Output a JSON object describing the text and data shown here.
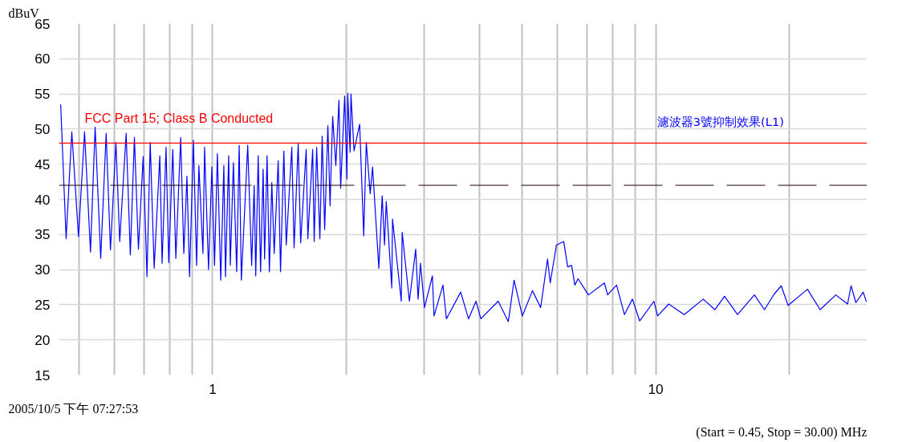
{
  "chart_data": {
    "type": "line",
    "ylabel": "dBuV",
    "log": "x",
    "grid": true,
    "marker": "none",
    "line_style": "solid",
    "xlim": [
      0.45,
      30
    ],
    "ylim": [
      15,
      65
    ],
    "xticks": [
      {
        "value": 0.5,
        "label": null
      },
      {
        "value": 0.6,
        "label": null
      },
      {
        "value": 0.7,
        "label": null
      },
      {
        "value": 0.8,
        "label": null
      },
      {
        "value": 0.9,
        "label": null
      },
      1,
      {
        "value": 2,
        "label": null
      },
      {
        "value": 3,
        "label": null
      },
      {
        "value": 4,
        "label": null
      },
      {
        "value": 5,
        "label": null
      },
      {
        "value": 6,
        "label": null
      },
      {
        "value": 7,
        "label": null
      },
      {
        "value": 8,
        "label": null
      },
      {
        "value": 9,
        "label": null
      },
      10,
      {
        "value": 20,
        "label": null
      }
    ],
    "yticks": [
      15,
      20,
      25,
      30,
      35,
      40,
      45,
      50,
      55,
      60,
      65
    ],
    "ref_lines": [
      {
        "axis": "y",
        "value": 48,
        "label": "FCC Part 15; Class B Conducted",
        "color": "#ff0000",
        "line_style": "solid"
      },
      {
        "axis": "y",
        "value": 42,
        "color": "#200000",
        "line_style": "dashed"
      }
    ],
    "annotations": [
      "2005/10/5 下午 07:27:53",
      "(Start = 0.45, Stop = 30.00) MHz"
    ],
    "series": [
      {
        "name": "濾波器3號抑制效果(L1)",
        "color": "#0000ff",
        "x": [
          0.454,
          0.467,
          0.481,
          0.498,
          0.514,
          0.53,
          0.543,
          0.559,
          0.575,
          0.588,
          0.605,
          0.617,
          0.638,
          0.652,
          0.666,
          0.68,
          0.697,
          0.711,
          0.723,
          0.738,
          0.76,
          0.769,
          0.785,
          0.796,
          0.813,
          0.826,
          0.847,
          0.861,
          0.875,
          0.887,
          0.905,
          0.92,
          0.931,
          0.951,
          0.959,
          0.979,
          0.996,
          1.01,
          1.025,
          1.043,
          1.06,
          1.069,
          1.087,
          1.096,
          1.114,
          1.133,
          1.148,
          1.161,
          1.2,
          1.225,
          1.241,
          1.251,
          1.267,
          1.283,
          1.3,
          1.31,
          1.327,
          1.343,
          1.36,
          1.377,
          1.406,
          1.423,
          1.448,
          1.466,
          1.509,
          1.527,
          1.56,
          1.58,
          1.626,
          1.64,
          1.682,
          1.695,
          1.717,
          1.746,
          1.767,
          1.79,
          1.82,
          1.841,
          1.866,
          1.897,
          1.928,
          1.945,
          1.986,
          2.01,
          2.018,
          2.043,
          2.052,
          2.085,
          2.147,
          2.193,
          2.222,
          2.268,
          2.296,
          2.372,
          2.414,
          2.443,
          2.465,
          2.537,
          2.547,
          2.665,
          2.678,
          2.78,
          2.873,
          2.909,
          2.945,
          3.007,
          3.133,
          3.16,
          3.31,
          3.37,
          3.63,
          3.78,
          3.93,
          4.03,
          4.41,
          4.65,
          4.79,
          5.0,
          5.27,
          5.5,
          5.7,
          5.78,
          5.97,
          6.2,
          6.33,
          6.46,
          6.57,
          6.68,
          7.05,
          7.66,
          7.79,
          8.16,
          8.5,
          8.86,
          9.2,
          9.91,
          10.1,
          10.7,
          11.6,
          12.8,
          13.6,
          14.3,
          15.3,
          16.7,
          17.6,
          18.5,
          19.2,
          19.9,
          22.0,
          23.5,
          25.5,
          27.1,
          27.6,
          28.3,
          29.4,
          29.9
        ],
        "values": [
          53.5,
          34.4,
          49.6,
          34.7,
          49.6,
          32.5,
          50.3,
          31.6,
          49.4,
          32.8,
          48.1,
          34.0,
          49.4,
          32.1,
          48.8,
          32.9,
          46.1,
          29.0,
          48.1,
          30.2,
          46.2,
          30.9,
          47.4,
          31.0,
          47.1,
          31.6,
          48.8,
          32.3,
          43.3,
          29.0,
          48.4,
          30.6,
          44.8,
          32.3,
          47.4,
          30.0,
          44.6,
          30.6,
          46.5,
          28.5,
          44.8,
          29.0,
          46.2,
          30.6,
          45.2,
          29.7,
          47.7,
          28.5,
          47.7,
          30.6,
          42.0,
          29.1,
          46.2,
          29.7,
          44.3,
          31.5,
          46.2,
          29.7,
          42.4,
          32.3,
          45.5,
          29.7,
          46.9,
          33.5,
          47.4,
          33.1,
          48.0,
          33.8,
          47.1,
          34.4,
          47.1,
          34.0,
          47.4,
          34.4,
          49.0,
          35.7,
          50.5,
          39.1,
          51.8,
          44.8,
          54.1,
          41.6,
          54.7,
          42.9,
          55.1,
          46.7,
          55.0,
          46.9,
          50.7,
          34.8,
          48.1,
          40.8,
          44.6,
          30.2,
          40.5,
          33.5,
          39.7,
          27.4,
          37.2,
          25.5,
          35.3,
          25.5,
          32.9,
          25.8,
          30.9,
          24.6,
          29.1,
          23.4,
          27.8,
          23.0,
          26.8,
          23.0,
          25.5,
          23.0,
          25.5,
          22.6,
          28.5,
          23.4,
          27.0,
          24.6,
          31.5,
          28.1,
          33.5,
          34.0,
          30.4,
          30.6,
          27.8,
          28.7,
          26.4,
          28.1,
          26.4,
          27.8,
          23.6,
          25.8,
          22.7,
          25.5,
          23.4,
          25.1,
          23.6,
          25.8,
          24.3,
          26.2,
          23.6,
          26.4,
          24.3,
          26.5,
          27.7,
          24.9,
          27.2,
          24.3,
          26.4,
          25.1,
          27.7,
          25.3,
          26.8,
          25.4
        ]
      }
    ]
  }
}
